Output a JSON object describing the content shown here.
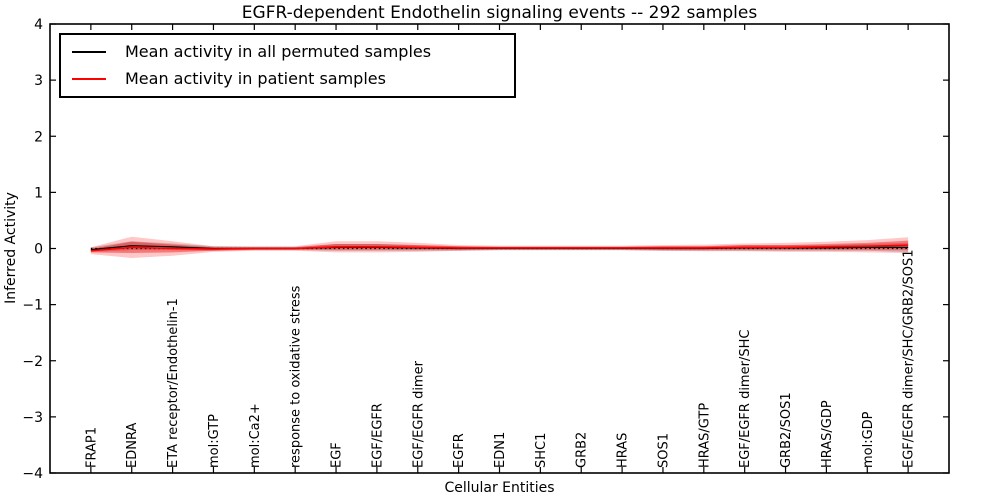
{
  "figure": {
    "title": "EGFR-dependent Endothelin signaling events -- 292 samples",
    "xlabel": "Cellular Entities",
    "ylabel": "Inferred Activity"
  },
  "legend": {
    "position": "upper left",
    "items": [
      {
        "label": "Mean activity in all permuted samples",
        "color": "#000000"
      },
      {
        "label": "Mean activity in patient samples",
        "color": "#ff0000"
      }
    ]
  },
  "chart_data": {
    "type": "line",
    "title": "EGFR-dependent Endothelin signaling events -- 292 samples",
    "xlabel": "Cellular Entities",
    "ylabel": "Inferred Activity",
    "ylim": [
      -4,
      4
    ],
    "y_ticks": [
      4,
      3,
      2,
      1,
      0,
      -1,
      -2,
      -3,
      -4
    ],
    "y_tick_labels": [
      "4",
      "3",
      "2",
      "1",
      "0",
      "−1",
      "−2",
      "−3",
      "−4"
    ],
    "grid": false,
    "legend_position": "upper left",
    "categories": [
      "FRAP1",
      "EDNRA",
      "ETA receptor/Endothelin-1",
      "mol:GTP",
      "mol:Ca2+",
      "response to oxidative stress",
      "EGF",
      "EGF/EGFR",
      "EGF/EGFR dimer",
      "EGFR",
      "EDN1",
      "SHC1",
      "GRB2",
      "HRAS",
      "SOS1",
      "HRAS/GTP",
      "EGF/EGFR dimer/SHC",
      "GRB2/SOS1",
      "HRAS/GDP",
      "mol:GDP",
      "EGF/EGFR dimer/SHC/GRB2/SOS1"
    ],
    "series": [
      {
        "name": "Mean activity in all permuted samples",
        "color": "#000000",
        "values": [
          -0.02,
          0.05,
          0.03,
          0.0,
          0.0,
          0.0,
          0.02,
          0.02,
          0.01,
          0.0,
          0.0,
          0.0,
          0.0,
          0.0,
          0.0,
          0.0,
          0.01,
          0.01,
          0.01,
          0.02,
          0.02
        ]
      },
      {
        "name": "Mean activity in patient samples",
        "color": "#ff0000",
        "values": [
          -0.04,
          0.02,
          0.0,
          -0.01,
          0.0,
          0.0,
          0.03,
          0.03,
          0.02,
          0.01,
          0.01,
          0.01,
          0.01,
          0.01,
          0.01,
          0.01,
          0.02,
          0.02,
          0.03,
          0.04,
          0.06
        ]
      }
    ],
    "bands": [
      {
        "name": "permuted-std-band",
        "center_series": 0,
        "color": "#999999",
        "opacity": 0.5,
        "halfwidths": [
          0.04,
          0.08,
          0.06,
          0.04,
          0.03,
          0.03,
          0.06,
          0.06,
          0.05,
          0.04,
          0.03,
          0.03,
          0.03,
          0.03,
          0.04,
          0.04,
          0.05,
          0.05,
          0.05,
          0.06,
          0.08
        ]
      },
      {
        "name": "patient-std-band-outer",
        "center_series": 1,
        "color": "#ff0000",
        "opacity": 0.22,
        "halfwidths": [
          0.06,
          0.19,
          0.13,
          0.05,
          0.04,
          0.04,
          0.1,
          0.1,
          0.08,
          0.05,
          0.04,
          0.04,
          0.04,
          0.04,
          0.05,
          0.06,
          0.07,
          0.08,
          0.09,
          0.11,
          0.14
        ]
      },
      {
        "name": "patient-std-band-inner",
        "center_series": 1,
        "color": "#e00000",
        "opacity": 0.38,
        "halfwidths": [
          0.03,
          0.1,
          0.07,
          0.03,
          0.02,
          0.02,
          0.05,
          0.05,
          0.04,
          0.03,
          0.02,
          0.02,
          0.02,
          0.02,
          0.03,
          0.03,
          0.04,
          0.04,
          0.05,
          0.06,
          0.08
        ]
      }
    ],
    "zero_line": {
      "y": 0,
      "color": "#000000",
      "style": "dotted"
    }
  }
}
